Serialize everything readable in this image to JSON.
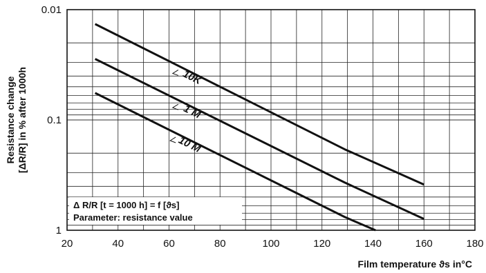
{
  "chart_data": {
    "type": "line",
    "x_axis": {
      "label": "Film temperature ϑs in°C",
      "range": [
        20,
        180
      ],
      "scale": "linear",
      "ticks": [
        20,
        40,
        60,
        80,
        100,
        120,
        140,
        160,
        180
      ],
      "tick_labels": [
        "20",
        "40",
        "60",
        "80",
        "100",
        "120",
        "140",
        "160",
        "180"
      ]
    },
    "y_axis": {
      "label_line1": "Resistance change",
      "label_line2": "[ΔR/R] in % after 1000h",
      "range": [
        0.01,
        1
      ],
      "scale": "log",
      "inverted": true,
      "ticks": [
        0.01,
        0.1,
        1
      ],
      "tick_labels": [
        "0.01",
        "0.1",
        "1"
      ]
    },
    "grid": true,
    "series": [
      {
        "name": "10K",
        "points": [
          [
            31,
            0.0135
          ],
          [
            129,
            0.185
          ],
          [
            160,
            0.385
          ]
        ]
      },
      {
        "name": "1 M",
        "points": [
          [
            31,
            0.028
          ],
          [
            129,
            0.37
          ],
          [
            160,
            0.79
          ]
        ]
      },
      {
        "name": "10 M",
        "points": [
          [
            31,
            0.057
          ],
          [
            129,
            0.76
          ],
          [
            141,
            1.0
          ]
        ]
      }
    ],
    "legend_box": {
      "line1": "Δ R/R [t = 1000 h] = f [ϑs]",
      "line2": "Parameter: resistance value",
      "placement": "bottom-left"
    }
  }
}
